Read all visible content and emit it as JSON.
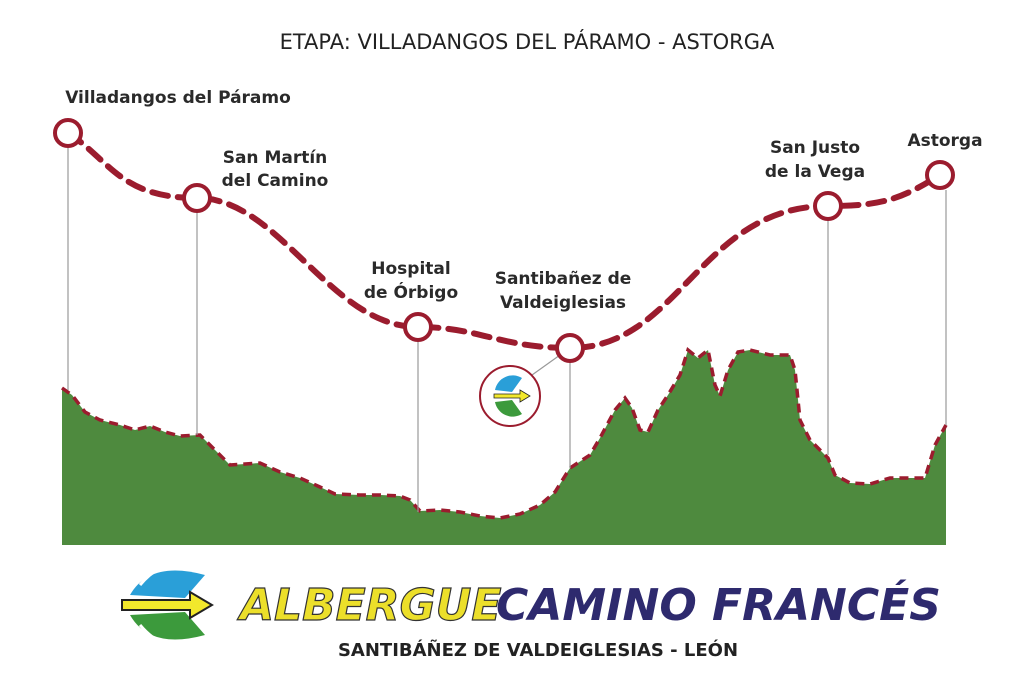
{
  "title": "ETAPA: VILLADANGOS DEL PÁRAMO - ASTORGA",
  "stops": [
    {
      "label_lines": [
        "Villadangos del Páramo"
      ]
    },
    {
      "label_lines": [
        "San Martín",
        "del Camino"
      ]
    },
    {
      "label_lines": [
        "Hospital",
        "de Órbigo"
      ]
    },
    {
      "label_lines": [
        "Santibañez de",
        "Valdeiglesias"
      ]
    },
    {
      "label_lines": [
        "San Justo",
        "de la Vega"
      ]
    },
    {
      "label_lines": [
        "Astorga"
      ]
    }
  ],
  "logo": {
    "word1": "ALBERGUE",
    "word2": "CAMINO FRANCÉS",
    "subtitle": "SANTIBÁÑEZ DE VALDEIGLESIAS - LEÓN"
  }
}
